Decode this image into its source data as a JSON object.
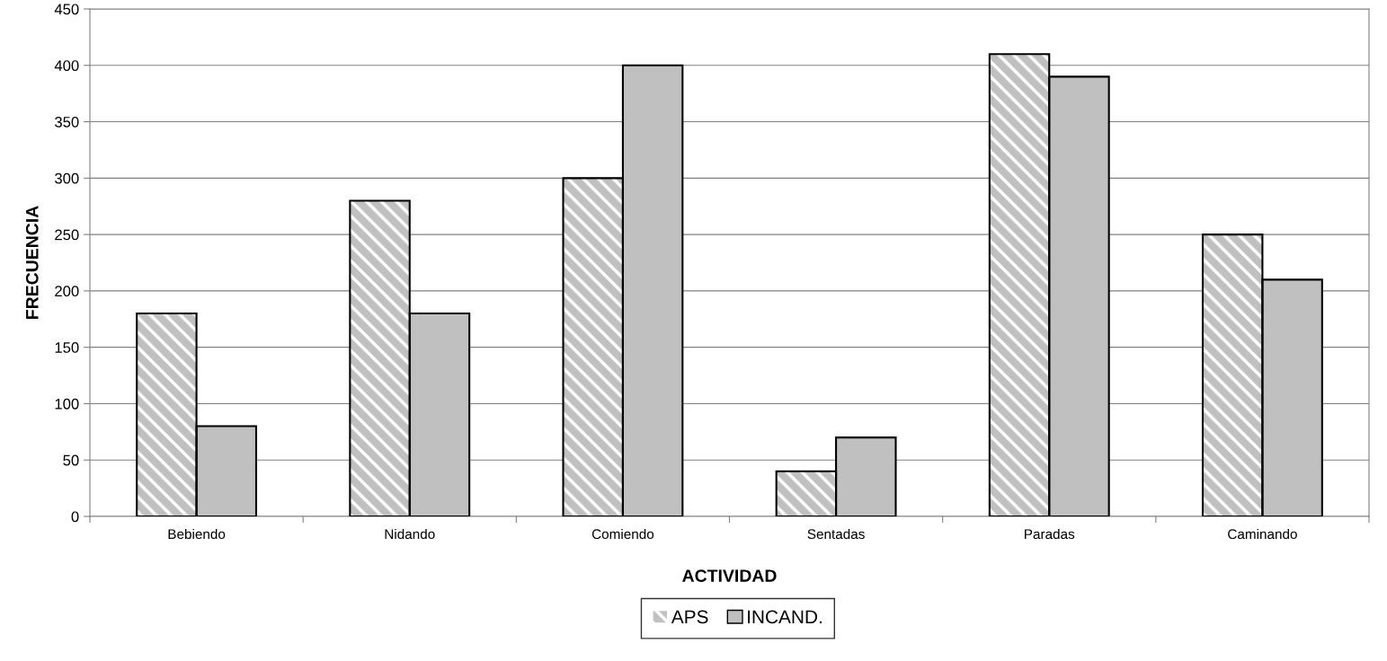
{
  "chart_data": {
    "type": "bar",
    "xlabel": "ACTIVIDAD",
    "ylabel": "FRECUENCIA",
    "categories": [
      "Bebiendo",
      "Nidando",
      "Comiendo",
      "Sentadas",
      "Paradas",
      "Caminando"
    ],
    "series": [
      {
        "name": "APS",
        "color": "#c0c0c0",
        "values": [
          180,
          280,
          300,
          40,
          410,
          250
        ]
      },
      {
        "name": "INCAND.",
        "color": "#c0c0c0",
        "values": [
          80,
          180,
          400,
          70,
          390,
          210
        ]
      }
    ],
    "ylim": [
      0,
      450
    ],
    "yticks": [
      0,
      50,
      100,
      150,
      200,
      250,
      300,
      350,
      400,
      450
    ],
    "grid": "y",
    "legend": "bottom"
  }
}
